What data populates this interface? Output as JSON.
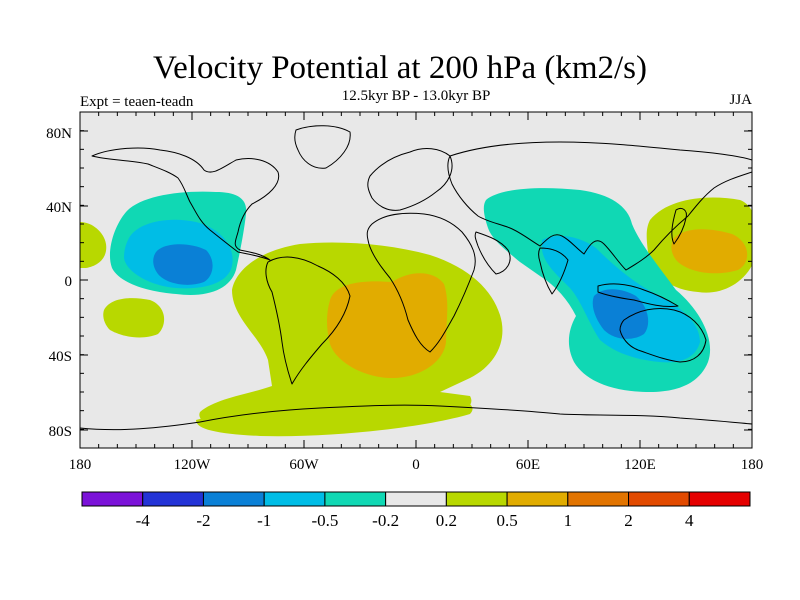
{
  "title": "Velocity Potential at 200 hPa (km2/s)",
  "subtitle": "12.5kyr BP - 13.0kyr BP",
  "experiment": "Expt = teaen-teadn",
  "season": "JJA",
  "lat_ticks": [
    "80N",
    "40N",
    "0",
    "40S",
    "80S"
  ],
  "lon_ticks": [
    "180",
    "120W",
    "60W",
    "0",
    "60E",
    "120E",
    "180"
  ],
  "colorbar": {
    "colors": [
      "#7b12d8",
      "#2333d6",
      "#0a80d6",
      "#00bde6",
      "#10d8b4",
      "#e8e8e8",
      "#b8d800",
      "#e1ac00",
      "#e27400",
      "#e24a00",
      "#e50000"
    ],
    "labels": [
      "-4",
      "-2",
      "-1",
      "-0.5",
      "-0.2",
      "0.2",
      "0.5",
      "1",
      "2",
      "4"
    ]
  }
}
